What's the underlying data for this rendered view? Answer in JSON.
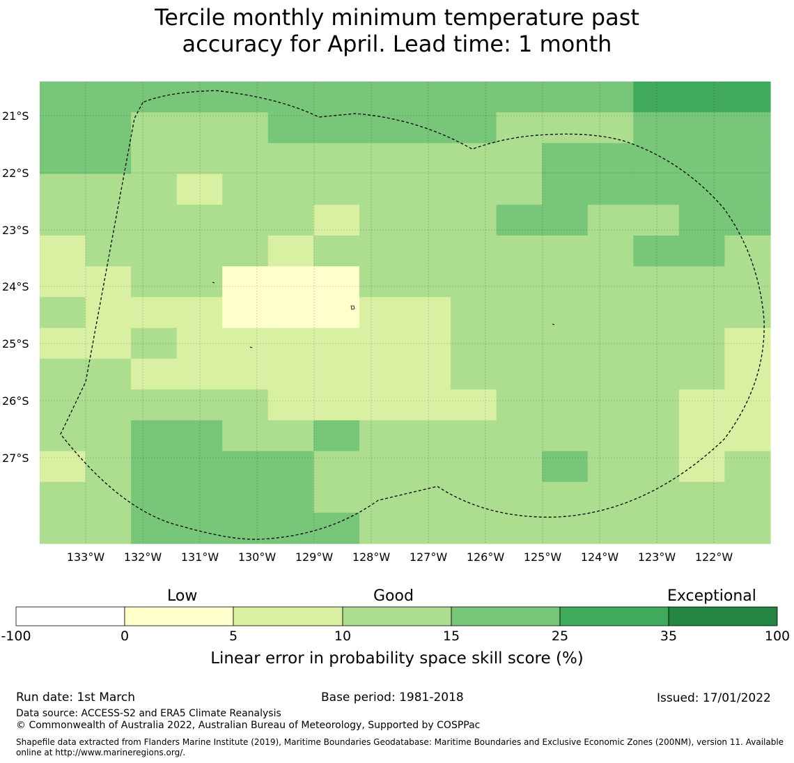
{
  "title": {
    "line1": "Tercile monthly minimum temperature past",
    "line2": "accuracy for April. Lead time: 1 month"
  },
  "map": {
    "lat_labels": [
      "21°S",
      "22°S",
      "23°S",
      "24°S",
      "25°S",
      "26°S",
      "27°S"
    ],
    "lon_labels": [
      "133°W",
      "132°W",
      "131°W",
      "130°W",
      "129°W",
      "128°W",
      "127°W",
      "126°W",
      "125°W",
      "124°W",
      "123°W",
      "122°W"
    ],
    "grid_lat_rows_top_to_bottom": [
      "20.55-21.0",
      "21.0-21.55",
      "21.55-22.1",
      "22.1-22.65",
      "22.65-23.2",
      "23.2-23.75",
      "23.75-24.3",
      "24.3-24.85",
      "24.85-25.4",
      "25.4-25.95",
      "25.95-26.5",
      "26.5-27.05",
      "27.05-27.6",
      "27.6-28.15",
      "28.15-28.7"
    ],
    "cells": [
      "4444444444444555",
      "4433344444333444",
      "4433333333344444",
      "3332333333344444",
      "3333332333443344",
      "2333323333333443",
      "2233111333333333",
      "3222111223333333",
      "2232222223333332",
      "3322222223333332",
      "3333322222333322",
      "3344334333333322",
      "2344443333343323",
      "3344443333333333",
      "3344444333333333"
    ]
  },
  "legend": {
    "category_labels": [
      "Low",
      "Good",
      "Exceptional"
    ],
    "ticks": [
      "-100",
      "0",
      "5",
      "10",
      "15",
      "25",
      "35",
      "100"
    ],
    "colors": [
      "#ffffff",
      "#ffffcc",
      "#d9f0a3",
      "#addd8e",
      "#78c679",
      "#41ab5d",
      "#238443"
    ],
    "title": "Linear error in probability space skill score (%)"
  },
  "footer": {
    "run_date": "Run date: 1st March",
    "base_period": "Base period: 1981-2018",
    "issued": "Issued: 17/01/2022",
    "data_source": "Data source: ACCESS-S2 and ERA5 Climate Reanalysis",
    "copyright": "© Commonwealth of Australia 2022, Australian Bureau of Meteorology, Supported by COSPPac",
    "shapefile": "Shapefile data extracted from Flanders Marine Institute (2019), Maritime Boundaries Geodatabase: Maritime Boundaries and Exclusive Economic Zones (200NM), version 11. Available online at http://www.marineregions.org/."
  }
}
